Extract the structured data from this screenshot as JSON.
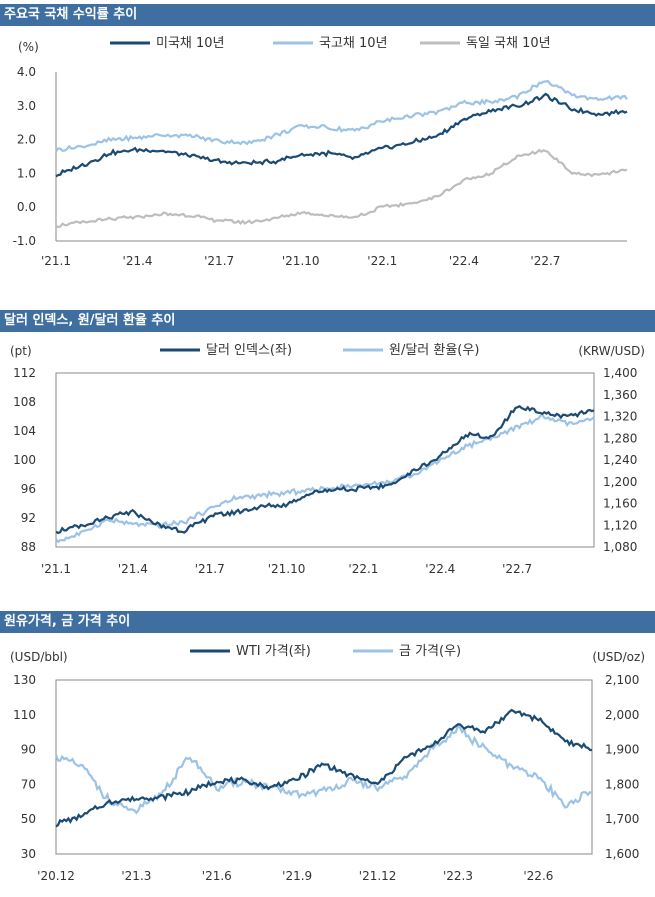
{
  "colors": {
    "header_bg": "#3f6fa0",
    "dark": "#1b4a72",
    "light": "#9cc3e6",
    "gray": "#bdbdbd"
  },
  "panels": [
    {
      "title": "주요국 국채 수익률 추이"
    },
    {
      "title": "달러 인덱스, 원/달러 환율 추이"
    },
    {
      "title": "원유가격, 금 가격 추이"
    }
  ],
  "chart_data": [
    {
      "type": "line",
      "title": "주요국 국채 수익률 추이",
      "y_unit": "(%)",
      "ylim": [
        -1.0,
        4.0
      ],
      "y_ticks": [
        "4.0",
        "3.0",
        "2.0",
        "1.0",
        "0.0",
        "-1.0"
      ],
      "x_tick_labels": [
        "'21.1",
        "'21.4",
        "'21.7",
        "'21.10",
        "'22.1",
        "'22.4",
        "'22.7"
      ],
      "x": [
        "2021-01",
        "2021-02",
        "2021-03",
        "2021-04",
        "2021-05",
        "2021-06",
        "2021-07",
        "2021-08",
        "2021-09",
        "2021-10",
        "2021-11",
        "2021-12",
        "2022-01",
        "2022-02",
        "2022-03",
        "2022-04",
        "2022-05",
        "2022-06",
        "2022-07",
        "2022-08",
        "2022-09",
        "2022-10"
      ],
      "series": [
        {
          "name": "미국채 10년",
          "values": [
            0.95,
            1.25,
            1.6,
            1.7,
            1.65,
            1.5,
            1.35,
            1.3,
            1.35,
            1.55,
            1.6,
            1.45,
            1.75,
            1.9,
            2.1,
            2.6,
            2.85,
            3.0,
            3.3,
            2.9,
            2.75,
            2.85
          ]
        },
        {
          "name": "국고채 10년",
          "values": [
            1.7,
            1.8,
            2.0,
            2.05,
            2.15,
            2.1,
            1.95,
            1.9,
            2.1,
            2.4,
            2.35,
            2.25,
            2.55,
            2.7,
            2.8,
            3.1,
            3.1,
            3.3,
            3.75,
            3.3,
            3.2,
            3.25
          ]
        },
        {
          "name": "독일 국채 10년",
          "values": [
            -0.55,
            -0.45,
            -0.35,
            -0.3,
            -0.2,
            -0.25,
            -0.4,
            -0.45,
            -0.35,
            -0.15,
            -0.25,
            -0.3,
            0.0,
            0.1,
            0.3,
            0.8,
            1.0,
            1.5,
            1.7,
            1.0,
            0.95,
            1.1
          ]
        }
      ]
    },
    {
      "type": "line",
      "title": "달러 인덱스, 원/달러 환율 추이",
      "y_unit_left": "(pt)",
      "y_unit_right": "(KRW/USD)",
      "ylim_left": [
        88,
        112
      ],
      "ylim_right": [
        1080,
        1400
      ],
      "y_ticks_left": [
        "112",
        "108",
        "104",
        "100",
        "96",
        "92",
        "88"
      ],
      "y_ticks_right": [
        "1,400",
        "1,360",
        "1,320",
        "1,280",
        "1,240",
        "1,200",
        "1,160",
        "1,120",
        "1,080"
      ],
      "x_tick_labels": [
        "'21.1",
        "'21.4",
        "'21.7",
        "'21.10",
        "'22.1",
        "'22.4",
        "'22.7"
      ],
      "x": [
        "2021-01",
        "2021-02",
        "2021-03",
        "2021-04",
        "2021-05",
        "2021-06",
        "2021-07",
        "2021-08",
        "2021-09",
        "2021-10",
        "2021-11",
        "2021-12",
        "2022-01",
        "2022-02",
        "2022-03",
        "2022-04",
        "2022-05",
        "2022-06",
        "2022-07",
        "2022-08",
        "2022-09",
        "2022-10"
      ],
      "series": [
        {
          "name": "달러 인덱스(좌)",
          "axis": "left",
          "values": [
            90.2,
            90.8,
            92.0,
            92.8,
            91.0,
            90.2,
            92.2,
            92.8,
            93.5,
            93.9,
            95.5,
            96.0,
            96.0,
            96.5,
            98.5,
            100.5,
            103.5,
            103.0,
            107.5,
            106.5,
            106.0,
            106.8
          ]
        },
        {
          "name": "원/달러 환율(우)",
          "axis": "right",
          "values": [
            1090,
            1105,
            1130,
            1122,
            1120,
            1125,
            1150,
            1170,
            1175,
            1180,
            1185,
            1190,
            1195,
            1200,
            1215,
            1240,
            1265,
            1280,
            1300,
            1320,
            1305,
            1315
          ]
        }
      ]
    },
    {
      "type": "line",
      "title": "원유가격, 금 가격 추이",
      "y_unit_left": "(USD/bbl)",
      "y_unit_right": "(USD/oz)",
      "ylim_left": [
        30,
        130
      ],
      "ylim_right": [
        1600,
        2100
      ],
      "y_ticks_left": [
        "130",
        "110",
        "90",
        "70",
        "50",
        "30"
      ],
      "y_ticks_right": [
        "2,100",
        "2,000",
        "1,900",
        "1,800",
        "1,700",
        "1,600"
      ],
      "x_tick_labels": [
        "'20.12",
        "'21.3",
        "'21.6",
        "'21.9",
        "'21.12",
        "'22.3",
        "'22.6"
      ],
      "x": [
        "2020-12",
        "2021-01",
        "2021-02",
        "2021-03",
        "2021-04",
        "2021-05",
        "2021-06",
        "2021-07",
        "2021-08",
        "2021-09",
        "2021-10",
        "2021-11",
        "2021-12",
        "2022-01",
        "2022-02",
        "2022-03",
        "2022-04",
        "2022-05",
        "2022-06",
        "2022-07",
        "2022-08"
      ],
      "series": [
        {
          "name": "WTI 가격(좌)",
          "axis": "left",
          "values": [
            47,
            52,
            60,
            62,
            63,
            66,
            72,
            72,
            68,
            73,
            82,
            75,
            70,
            85,
            92,
            105,
            100,
            112,
            108,
            95,
            90
          ]
        },
        {
          "name": "금 가격(우)",
          "axis": "right",
          "values": [
            1880,
            1850,
            1750,
            1720,
            1780,
            1880,
            1790,
            1810,
            1790,
            1770,
            1780,
            1810,
            1790,
            1820,
            1900,
            1960,
            1900,
            1850,
            1820,
            1740,
            1780
          ]
        }
      ]
    }
  ]
}
